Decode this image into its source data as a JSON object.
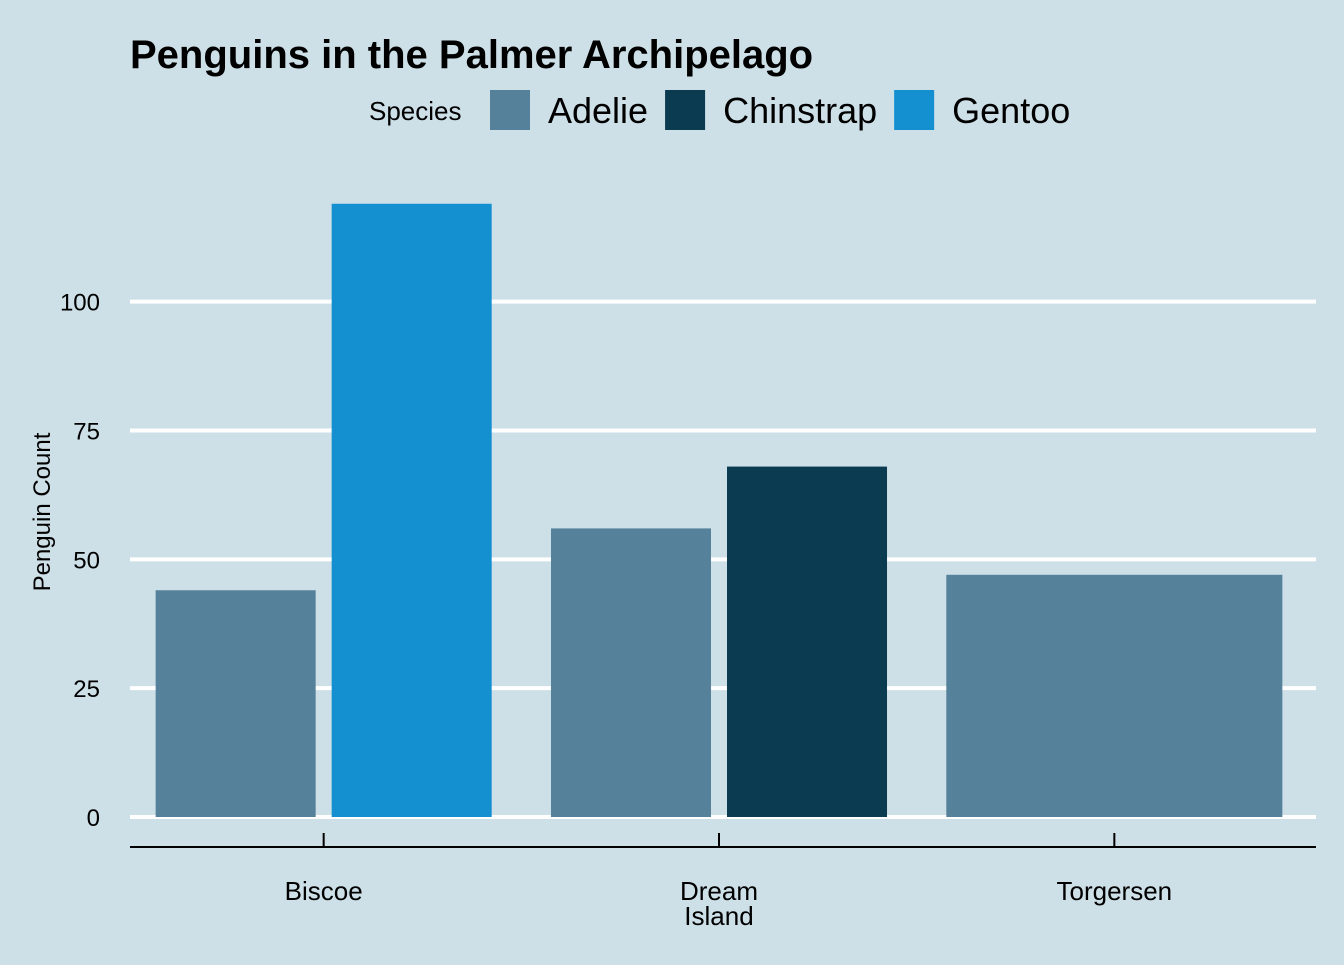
{
  "chart_data": {
    "type": "bar",
    "title": "Penguins in the Palmer Archipelago",
    "xlabel": "",
    "ylabel": "Penguin Count",
    "ylim": [
      0,
      124
    ],
    "yticks": [
      0,
      25,
      50,
      75,
      100
    ],
    "grid": "horizontal",
    "legend": {
      "title": "Species",
      "position": "top"
    },
    "categories": [
      {
        "key": "Biscoe",
        "lines": [
          "Biscoe"
        ]
      },
      {
        "key": "Dream Island",
        "lines": [
          "Dream",
          "Island"
        ]
      },
      {
        "key": "Torgersen",
        "lines": [
          "Torgersen"
        ]
      }
    ],
    "series": [
      {
        "name": "Adelie",
        "color": "#55819a"
      },
      {
        "name": "Chinstrap",
        "color": "#0a3b51"
      },
      {
        "name": "Gentoo",
        "color": "#1490d1"
      }
    ],
    "data": [
      {
        "category": "Biscoe",
        "species": "Adelie",
        "value": 44
      },
      {
        "category": "Biscoe",
        "species": "Gentoo",
        "value": 119
      },
      {
        "category": "Dream Island",
        "species": "Adelie",
        "value": 56
      },
      {
        "category": "Dream Island",
        "species": "Chinstrap",
        "value": 68
      },
      {
        "category": "Torgersen",
        "species": "Adelie",
        "value": 47
      }
    ],
    "colors": {
      "background": "#cddfe7",
      "grid": "#ffffff",
      "axis": "#000000",
      "text": "#000000"
    }
  }
}
